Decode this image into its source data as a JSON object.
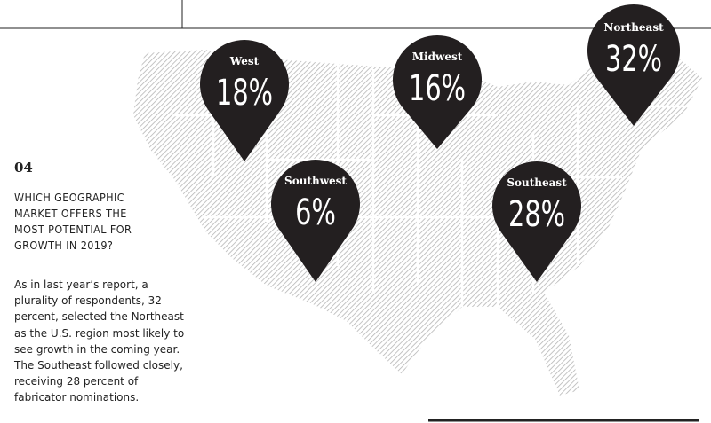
{
  "section": {
    "number": "04",
    "question": "WHICH GEOGRAPHIC MARKET OFFERS THE MOST POTENTIAL FOR GROWTH IN 2019?",
    "body": "As in last year’s report, a plurality of respondents, 32 percent, selected the Northeast as the U.S. region most likely to see growth in the coming year. The Southeast followed closely, receiving 28 percent of fabricator nominations."
  },
  "pins": [
    {
      "region": "West",
      "value": "18%"
    },
    {
      "region": "Midwest",
      "value": "16%"
    },
    {
      "region": "Northeast",
      "value": "32%"
    },
    {
      "region": "Southwest",
      "value": "6%"
    },
    {
      "region": "Southeast",
      "value": "28%"
    }
  ]
}
